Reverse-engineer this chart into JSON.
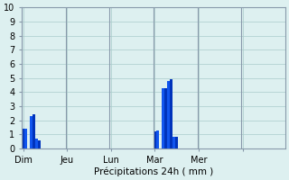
{
  "xlabel": "Précipitations 24h ( mm )",
  "ylim": [
    0,
    10
  ],
  "yticks": [
    0,
    1,
    2,
    3,
    4,
    5,
    6,
    7,
    8,
    9,
    10
  ],
  "background_color": "#ddf0f0",
  "bar_color_dark": "#0033bb",
  "bar_color_light": "#1155ee",
  "grid_color": "#aacccc",
  "bar_values": [
    1.4,
    1.4,
    0,
    2.3,
    2.4,
    0.7,
    0.6,
    0,
    0,
    0,
    0,
    0,
    0,
    0,
    0,
    0,
    0,
    0,
    0,
    0,
    0,
    0,
    0,
    0,
    0,
    0,
    0,
    0,
    0,
    0,
    0,
    0,
    0,
    0,
    0,
    0,
    0,
    0,
    0,
    0,
    0,
    0,
    0,
    0,
    0,
    0,
    0,
    0,
    1.2,
    1.3,
    0,
    4.3,
    4.3,
    4.8,
    4.9,
    0.8,
    0.8,
    0,
    0,
    0,
    0,
    0,
    0,
    0,
    0,
    0,
    0,
    0,
    0,
    0,
    0,
    0,
    0,
    0,
    0,
    0,
    0,
    0,
    0,
    0,
    0,
    0,
    0,
    0,
    0,
    0,
    0,
    0,
    0,
    0,
    0,
    0,
    0,
    0,
    0,
    0
  ],
  "num_bars": 96,
  "day_tick_positions": [
    0,
    16,
    32,
    48,
    64,
    80
  ],
  "day_labels": [
    "Dim",
    "Jeu",
    "Lun",
    "Mar",
    "Mer",
    ""
  ],
  "spine_color": "#8899aa"
}
